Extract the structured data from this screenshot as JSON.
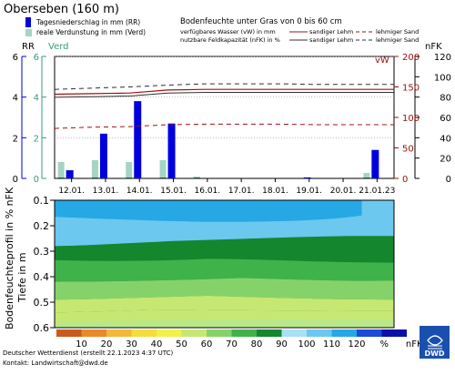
{
  "station": "Oberseben (160 m)",
  "legend_left": {
    "precip_label": "Tagesniederschlag in mm (RR)",
    "evap_label": "reale Verdunstung in mm (Verd)",
    "precip_color": "#0000dd",
    "evap_color": "#4aaa8a"
  },
  "legend_right": {
    "title": "Bodenfeuchte unter Gras von 0 bis 60 cm",
    "row1_label": "verfügbares Wasser (vW) in mm",
    "row2_label": "nutzbare Feldkapazität (nFK) in %",
    "soil1": "sandiger Lehm",
    "soil2": "lehmiger Sand",
    "line_color": "#a01010"
  },
  "axes": {
    "rr_label": "RR",
    "verd_label": "Verd",
    "vw_label": "vW",
    "nfk_label": "nFK",
    "rr_ticks": [
      "0",
      "2",
      "4",
      "6"
    ],
    "verd_ticks": [
      "0",
      "2",
      "4",
      "6"
    ],
    "vw_ticks": [
      "0",
      "50",
      "100",
      "150",
      "200"
    ],
    "nfk_ticks": [
      "0",
      "20",
      "40",
      "60",
      "80",
      "100",
      "120"
    ],
    "depth_ticks": [
      "0.1",
      "0.2",
      "0.3",
      "0.4",
      "0.5",
      "0.6"
    ],
    "profile_label": "Bodenfeuchteprofil in % nFK",
    "depth_label": "Tiefe in m"
  },
  "chart_data": {
    "type": "bar",
    "categories": [
      "12.01.",
      "13.01.",
      "14.01.",
      "15.01.",
      "16.01.",
      "17.01.",
      "18.01.",
      "19.01.",
      "20.01.",
      "21.01.23"
    ],
    "series": [
      {
        "name": "Tagesniederschlag in mm (RR)",
        "values": [
          0.4,
          2.2,
          3.8,
          2.7,
          0,
          0,
          0,
          0.05,
          0,
          1.4
        ]
      },
      {
        "name": "reale Verdunstung in mm (Verd)",
        "values": [
          0.8,
          0.9,
          0.8,
          0.9,
          0.1,
          0,
          0,
          0,
          0,
          0.3
        ]
      }
    ],
    "soil_moisture_vw_mm": {
      "sandy_loam": [
        138,
        139,
        140,
        145,
        146,
        146,
        146,
        146,
        146,
        146
      ],
      "loamy_sand_upper": [
        146,
        148,
        150,
        153,
        155,
        155,
        155,
        154,
        154,
        154
      ],
      "loamy_sand_lower": [
        82,
        84,
        85,
        88,
        89,
        89,
        89,
        88,
        88,
        88
      ]
    },
    "ylim_rr": [
      0,
      6
    ],
    "ylim_vw": [
      0,
      200
    ],
    "ylim_nfk": [
      0,
      120
    ]
  },
  "colorbar": {
    "ticks": [
      "10",
      "20",
      "30",
      "40",
      "50",
      "60",
      "70",
      "80",
      "90",
      "100",
      "110",
      "120",
      "%",
      "nFK"
    ],
    "colors": [
      "#c85a1e",
      "#e88a2a",
      "#f2b83a",
      "#f6dc3c",
      "#f2f04a",
      "#c6e872",
      "#86d26a",
      "#3fb24a",
      "#14862e",
      "#a8e0f4",
      "#6cc8ee",
      "#26a8e4",
      "#1a4ad8",
      "#0a10a8"
    ]
  },
  "footer": {
    "line1": "Deutscher Wetterdienst (erstellt 22.1.2023 4:37 UTC)",
    "line2": "Kontakt: Landwirtschaft@dwd.de",
    "logo_text": "DWD"
  }
}
